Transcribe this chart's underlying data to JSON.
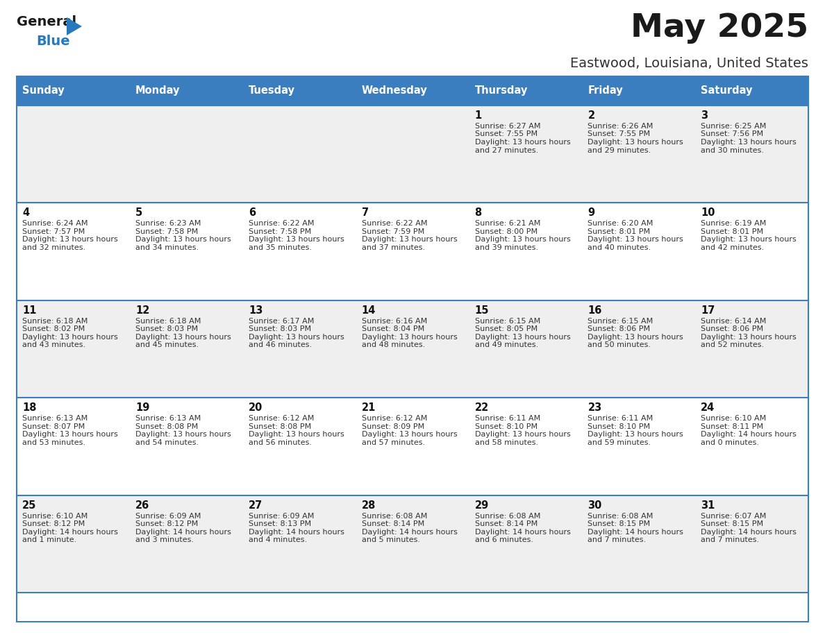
{
  "title": "May 2025",
  "subtitle": "Eastwood, Louisiana, United States",
  "header_bg_color": "#3A7EBF",
  "header_text_color": "#FFFFFF",
  "cell_bg_even": "#EFEFEF",
  "cell_bg_odd": "#FFFFFF",
  "text_color": "#333333",
  "border_color": "#3A7EBF",
  "days_of_week": [
    "Sunday",
    "Monday",
    "Tuesday",
    "Wednesday",
    "Thursday",
    "Friday",
    "Saturday"
  ],
  "calendar": [
    [
      {
        "day": "",
        "sunrise": "",
        "sunset": "",
        "daylight": ""
      },
      {
        "day": "",
        "sunrise": "",
        "sunset": "",
        "daylight": ""
      },
      {
        "day": "",
        "sunrise": "",
        "sunset": "",
        "daylight": ""
      },
      {
        "day": "",
        "sunrise": "",
        "sunset": "",
        "daylight": ""
      },
      {
        "day": "1",
        "sunrise": "6:27 AM",
        "sunset": "7:55 PM",
        "daylight": "13 hours and 27 minutes."
      },
      {
        "day": "2",
        "sunrise": "6:26 AM",
        "sunset": "7:55 PM",
        "daylight": "13 hours and 29 minutes."
      },
      {
        "day": "3",
        "sunrise": "6:25 AM",
        "sunset": "7:56 PM",
        "daylight": "13 hours and 30 minutes."
      }
    ],
    [
      {
        "day": "4",
        "sunrise": "6:24 AM",
        "sunset": "7:57 PM",
        "daylight": "13 hours and 32 minutes."
      },
      {
        "day": "5",
        "sunrise": "6:23 AM",
        "sunset": "7:58 PM",
        "daylight": "13 hours and 34 minutes."
      },
      {
        "day": "6",
        "sunrise": "6:22 AM",
        "sunset": "7:58 PM",
        "daylight": "13 hours and 35 minutes."
      },
      {
        "day": "7",
        "sunrise": "6:22 AM",
        "sunset": "7:59 PM",
        "daylight": "13 hours and 37 minutes."
      },
      {
        "day": "8",
        "sunrise": "6:21 AM",
        "sunset": "8:00 PM",
        "daylight": "13 hours and 39 minutes."
      },
      {
        "day": "9",
        "sunrise": "6:20 AM",
        "sunset": "8:01 PM",
        "daylight": "13 hours and 40 minutes."
      },
      {
        "day": "10",
        "sunrise": "6:19 AM",
        "sunset": "8:01 PM",
        "daylight": "13 hours and 42 minutes."
      }
    ],
    [
      {
        "day": "11",
        "sunrise": "6:18 AM",
        "sunset": "8:02 PM",
        "daylight": "13 hours and 43 minutes."
      },
      {
        "day": "12",
        "sunrise": "6:18 AM",
        "sunset": "8:03 PM",
        "daylight": "13 hours and 45 minutes."
      },
      {
        "day": "13",
        "sunrise": "6:17 AM",
        "sunset": "8:03 PM",
        "daylight": "13 hours and 46 minutes."
      },
      {
        "day": "14",
        "sunrise": "6:16 AM",
        "sunset": "8:04 PM",
        "daylight": "13 hours and 48 minutes."
      },
      {
        "day": "15",
        "sunrise": "6:15 AM",
        "sunset": "8:05 PM",
        "daylight": "13 hours and 49 minutes."
      },
      {
        "day": "16",
        "sunrise": "6:15 AM",
        "sunset": "8:06 PM",
        "daylight": "13 hours and 50 minutes."
      },
      {
        "day": "17",
        "sunrise": "6:14 AM",
        "sunset": "8:06 PM",
        "daylight": "13 hours and 52 minutes."
      }
    ],
    [
      {
        "day": "18",
        "sunrise": "6:13 AM",
        "sunset": "8:07 PM",
        "daylight": "13 hours and 53 minutes."
      },
      {
        "day": "19",
        "sunrise": "6:13 AM",
        "sunset": "8:08 PM",
        "daylight": "13 hours and 54 minutes."
      },
      {
        "day": "20",
        "sunrise": "6:12 AM",
        "sunset": "8:08 PM",
        "daylight": "13 hours and 56 minutes."
      },
      {
        "day": "21",
        "sunrise": "6:12 AM",
        "sunset": "8:09 PM",
        "daylight": "13 hours and 57 minutes."
      },
      {
        "day": "22",
        "sunrise": "6:11 AM",
        "sunset": "8:10 PM",
        "daylight": "13 hours and 58 minutes."
      },
      {
        "day": "23",
        "sunrise": "6:11 AM",
        "sunset": "8:10 PM",
        "daylight": "13 hours and 59 minutes."
      },
      {
        "day": "24",
        "sunrise": "6:10 AM",
        "sunset": "8:11 PM",
        "daylight": "14 hours and 0 minutes."
      }
    ],
    [
      {
        "day": "25",
        "sunrise": "6:10 AM",
        "sunset": "8:12 PM",
        "daylight": "14 hours and 1 minute."
      },
      {
        "day": "26",
        "sunrise": "6:09 AM",
        "sunset": "8:12 PM",
        "daylight": "14 hours and 3 minutes."
      },
      {
        "day": "27",
        "sunrise": "6:09 AM",
        "sunset": "8:13 PM",
        "daylight": "14 hours and 4 minutes."
      },
      {
        "day": "28",
        "sunrise": "6:08 AM",
        "sunset": "8:14 PM",
        "daylight": "14 hours and 5 minutes."
      },
      {
        "day": "29",
        "sunrise": "6:08 AM",
        "sunset": "8:14 PM",
        "daylight": "14 hours and 6 minutes."
      },
      {
        "day": "30",
        "sunrise": "6:08 AM",
        "sunset": "8:15 PM",
        "daylight": "14 hours and 7 minutes."
      },
      {
        "day": "31",
        "sunrise": "6:07 AM",
        "sunset": "8:15 PM",
        "daylight": "14 hours and 7 minutes."
      }
    ]
  ]
}
